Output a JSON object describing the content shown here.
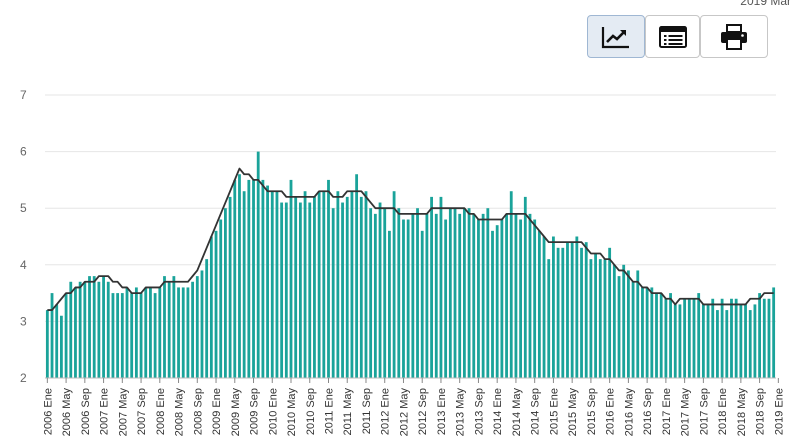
{
  "header": {
    "date_label": "2019 Mar"
  },
  "toolbar": {
    "buttons": [
      {
        "icon": "line-chart-icon",
        "active": true
      },
      {
        "icon": "table-view-icon",
        "active": false
      },
      {
        "icon": "print-icon",
        "active": false
      }
    ]
  },
  "colors": {
    "bars": "#1aa39a",
    "line": "#333333",
    "grid": "#e6e6e6"
  },
  "chart_data": {
    "type": "bar",
    "ylim": [
      2,
      7
    ],
    "yticks": [
      2,
      3,
      4,
      5,
      6,
      7
    ],
    "grid": true,
    "x_tick_labels": [
      "2006 Ene",
      "2006 May",
      "2006 Sep",
      "2007 Ene",
      "2007 May",
      "2007 Sep",
      "2008 Ene",
      "2008 May",
      "2008 Sep",
      "2009 Ene",
      "2009 May",
      "2009 Sep",
      "2010 Ene",
      "2010 May",
      "2010 Sep",
      "2011 Ene",
      "2011 May",
      "2011 Sep",
      "2012 Ene",
      "2012 May",
      "2012 Sep",
      "2013 Ene",
      "2013 May",
      "2013 Sep",
      "2014 Ene",
      "2014 May",
      "2014 Sep",
      "2015 Ene",
      "2015 May",
      "2015 Sep",
      "2016 Ene",
      "2016 May",
      "2016 Sep",
      "2017 Ene",
      "2017 May",
      "2017 Sep",
      "2018 Ene",
      "2018 May",
      "2018 Sep",
      "2019 Ene"
    ],
    "series": [
      {
        "kind": "bar",
        "values": [
          3.2,
          3.5,
          3.3,
          3.1,
          3.5,
          3.7,
          3.6,
          3.7,
          3.7,
          3.8,
          3.8,
          3.7,
          3.8,
          3.7,
          3.5,
          3.5,
          3.5,
          3.6,
          3.5,
          3.6,
          3.5,
          3.6,
          3.6,
          3.5,
          3.6,
          3.8,
          3.7,
          3.8,
          3.6,
          3.6,
          3.6,
          3.7,
          3.8,
          3.9,
          4.1,
          4.5,
          4.6,
          4.8,
          5.0,
          5.2,
          5.5,
          5.6,
          5.3,
          5.5,
          5.5,
          6.0,
          5.5,
          5.4,
          5.3,
          5.3,
          5.1,
          5.1,
          5.5,
          5.2,
          5.1,
          5.3,
          5.1,
          5.2,
          5.3,
          5.3,
          5.5,
          5.0,
          5.3,
          5.1,
          5.2,
          5.3,
          5.6,
          5.2,
          5.3,
          5.0,
          4.9,
          5.1,
          5.0,
          4.6,
          5.3,
          5.0,
          4.8,
          4.8,
          4.9,
          5.0,
          4.6,
          4.9,
          5.2,
          4.9,
          5.2,
          4.8,
          5.0,
          5.0,
          4.9,
          5.0,
          5.0,
          4.9,
          4.8,
          4.9,
          5.0,
          4.6,
          4.7,
          4.8,
          4.9,
          5.3,
          4.9,
          4.8,
          5.2,
          4.9,
          4.8,
          4.6,
          4.5,
          4.1,
          4.5,
          4.3,
          4.3,
          4.4,
          4.4,
          4.5,
          4.3,
          4.4,
          4.1,
          4.2,
          4.1,
          4.1,
          4.3,
          4.0,
          3.8,
          4.0,
          3.9,
          3.7,
          3.9,
          3.6,
          3.6,
          3.6,
          3.5,
          3.5,
          3.4,
          3.5,
          3.3,
          3.3,
          3.4,
          3.4,
          3.4,
          3.5,
          3.3,
          3.3,
          3.4,
          3.2,
          3.4,
          3.2,
          3.4,
          3.4,
          3.3,
          3.3,
          3.2,
          3.3,
          3.5,
          3.4,
          3.4,
          3.6
        ]
      },
      {
        "kind": "line",
        "values": [
          3.2,
          3.2,
          3.3,
          3.4,
          3.5,
          3.5,
          3.6,
          3.6,
          3.7,
          3.7,
          3.7,
          3.8,
          3.8,
          3.8,
          3.7,
          3.7,
          3.6,
          3.6,
          3.5,
          3.5,
          3.5,
          3.6,
          3.6,
          3.6,
          3.6,
          3.7,
          3.7,
          3.7,
          3.7,
          3.7,
          3.7,
          3.8,
          3.9,
          4.1,
          4.3,
          4.5,
          4.7,
          4.9,
          5.1,
          5.3,
          5.5,
          5.7,
          5.6,
          5.6,
          5.5,
          5.5,
          5.4,
          5.3,
          5.3,
          5.3,
          5.3,
          5.2,
          5.2,
          5.2,
          5.2,
          5.2,
          5.2,
          5.2,
          5.3,
          5.3,
          5.3,
          5.2,
          5.2,
          5.2,
          5.3,
          5.3,
          5.3,
          5.3,
          5.2,
          5.1,
          5.0,
          5.0,
          5.0,
          5.0,
          5.0,
          4.9,
          4.9,
          4.9,
          4.9,
          4.9,
          4.9,
          4.9,
          5.0,
          5.0,
          5.0,
          5.0,
          5.0,
          5.0,
          5.0,
          5.0,
          4.9,
          4.9,
          4.8,
          4.8,
          4.8,
          4.8,
          4.8,
          4.8,
          4.9,
          4.9,
          4.9,
          4.9,
          4.9,
          4.8,
          4.7,
          4.6,
          4.5,
          4.4,
          4.4,
          4.4,
          4.4,
          4.4,
          4.4,
          4.4,
          4.4,
          4.3,
          4.2,
          4.2,
          4.2,
          4.1,
          4.1,
          4.0,
          3.9,
          3.9,
          3.8,
          3.7,
          3.7,
          3.6,
          3.6,
          3.5,
          3.5,
          3.5,
          3.4,
          3.4,
          3.3,
          3.4,
          3.4,
          3.4,
          3.4,
          3.4,
          3.3,
          3.3,
          3.3,
          3.3,
          3.3,
          3.3,
          3.3,
          3.3,
          3.3,
          3.3,
          3.4,
          3.4,
          3.4,
          3.5,
          3.5,
          3.5
        ]
      }
    ]
  }
}
